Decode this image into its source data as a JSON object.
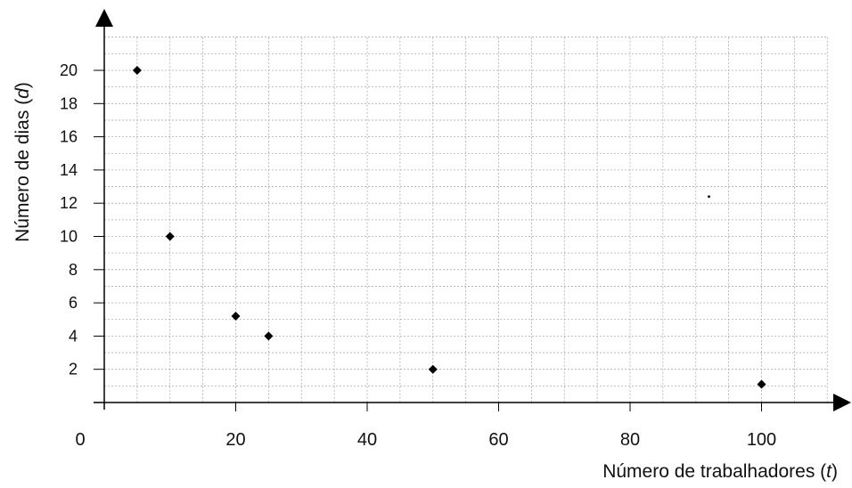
{
  "chart_data": {
    "type": "scatter",
    "xlabel": {
      "prefix": "Número de trabalhadores (",
      "var": "t",
      "suffix": ")"
    },
    "ylabel": {
      "prefix": "Número de dias (",
      "var": "d",
      "suffix": ")"
    },
    "xlim": [
      0,
      110
    ],
    "ylim": [
      0,
      22
    ],
    "x_ticks": [
      0,
      20,
      40,
      60,
      80,
      100
    ],
    "y_ticks": [
      2,
      4,
      6,
      8,
      10,
      12,
      14,
      16,
      18,
      20
    ],
    "grid": true,
    "series": [
      {
        "points": [
          {
            "x": 5,
            "y": 20
          },
          {
            "x": 10,
            "y": 10
          },
          {
            "x": 20,
            "y": 5.2
          },
          {
            "x": 25,
            "y": 4
          },
          {
            "x": 50,
            "y": 2
          },
          {
            "x": 100,
            "y": 1.1
          }
        ]
      }
    ],
    "stray_dot": {
      "x": 92,
      "y": 12.4
    },
    "colors": {
      "marker": "#000000",
      "grid": "#aaaaaa",
      "axis": "#000000"
    }
  }
}
